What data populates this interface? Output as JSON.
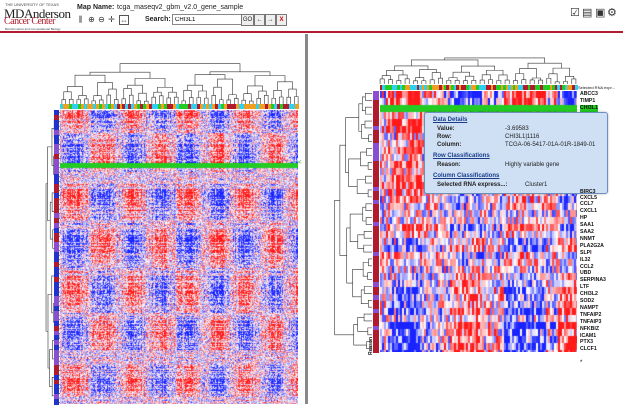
{
  "logo": {
    "line1": "THE UNIVERSITY OF TEXAS",
    "line2": "MDAnderson",
    "line3": "Cancer Center",
    "line4": "Bioinformatics and Computational Biology"
  },
  "header": {
    "map_name_label": "Map Name:",
    "map_name_value": "tcga_maseqv2_gbm_v2.0_gene_sample",
    "search_label": "Search:",
    "search_value": "CHI3L1",
    "go_label": "GO",
    "prev_label": "←",
    "next_label": "→",
    "clear_label": "X"
  },
  "toolbar_icons": [
    "layout-split-icon",
    "zoom-in-icon",
    "zoom-out-icon",
    "move-icon",
    "fullscreen-icon"
  ],
  "right_icons": [
    "checklist-icon",
    "pdf-icon",
    "save-icon",
    "gear-icon"
  ],
  "detail": {
    "selected_label": "Selected RNA expr...",
    "reason_label": "Reason",
    "genes": [
      "ABCC3",
      "TIMP1",
      "CHI3L1",
      "",
      "",
      "",
      "",
      "",
      "",
      "",
      "",
      "",
      "",
      "",
      "CXCL3",
      "CXCL5",
      "CCL7",
      "CXCL1",
      "HP",
      "SAA1",
      "SAA2",
      "NNMT",
      "PLA2G2A",
      "SLPI",
      "IL32",
      "CCL2",
      "UBD",
      "SERPINA3",
      "LTF",
      "CHI3L2",
      "SOD2",
      "NAMPT",
      "TNFAIP2",
      "TNFAIP3",
      "NFKBIZ",
      "ICAM1",
      "PTX3",
      "CLCF1"
    ],
    "hidden_gene_partial": "BIRC3"
  },
  "popup": {
    "data_details_title": "Data Details",
    "value_label": "Value:",
    "value": "-3.69583",
    "row_label": "Row:",
    "row": "CHI3L1|1116",
    "column_label": "Column:",
    "column": "TCGA-06-5417-01A-01R-1849-01",
    "row_class_title": "Row Classifications",
    "reason_label": "Reason:",
    "reason": "Highly variable gene",
    "col_class_title": "Column Classifications",
    "col_class_label": "Selected RNA express...:",
    "col_class_value": "Cluster1"
  },
  "colors": {
    "brand_red": "#b01c2e",
    "heat_red": "#e03030",
    "heat_blue": "#2233cc",
    "selection_green": "#22cc22",
    "covariate_cyan": "#30d0f0",
    "covariate_orange": "#f0a020",
    "covariate_purple": "#8a4fd0"
  }
}
